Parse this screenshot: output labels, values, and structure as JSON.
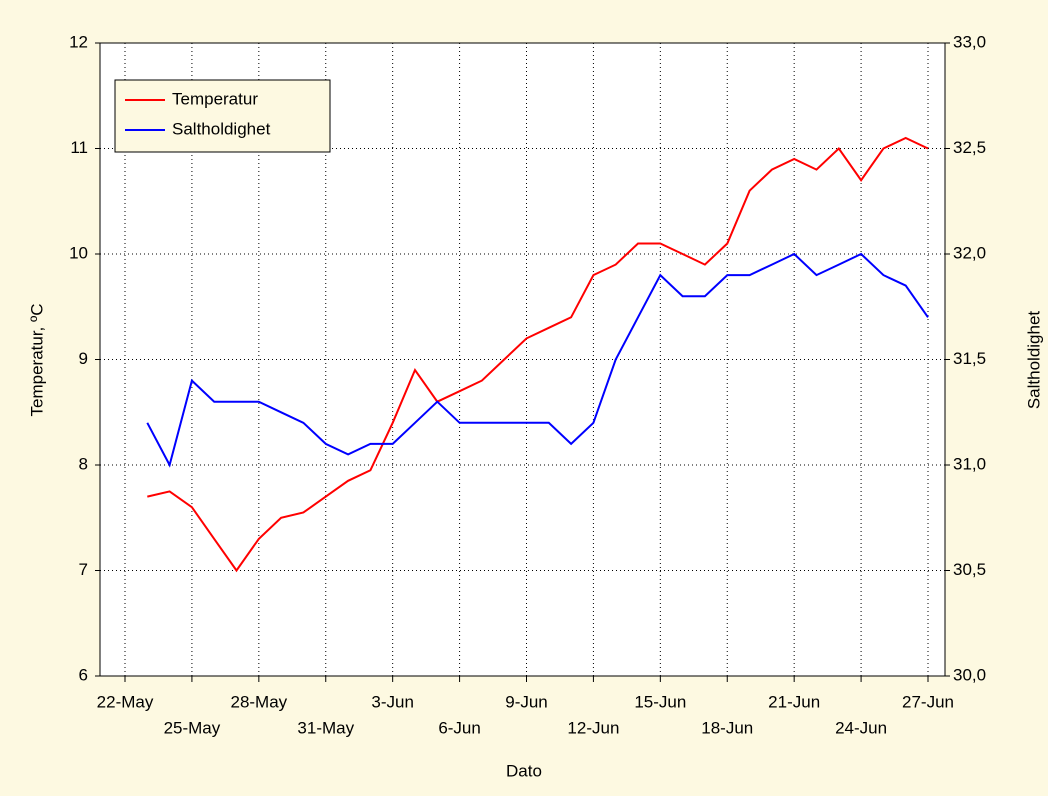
{
  "chart_data": {
    "type": "line",
    "xlabel": "Dato",
    "ylabel": "Temperatur, ºC",
    "y2label": "Saltholdighet",
    "categories": [
      "22-May",
      null,
      null,
      "25-May",
      null,
      null,
      "28-May",
      null,
      null,
      "31-May",
      null,
      null,
      "3-Jun",
      null,
      null,
      "6-Jun",
      null,
      null,
      "9-Jun",
      null,
      null,
      "12-Jun",
      null,
      null,
      "15-Jun",
      null,
      null,
      "18-Jun",
      null,
      null,
      "21-Jun",
      null,
      null,
      "24-Jun",
      null,
      null,
      "27-Jun"
    ],
    "series": [
      {
        "name": "Temperatur",
        "color": "#ff0000",
        "axis": "y",
        "values": [
          null,
          7.7,
          7.75,
          7.6,
          7.3,
          7.0,
          7.3,
          7.5,
          7.55,
          7.7,
          7.85,
          7.95,
          8.4,
          8.9,
          8.6,
          8.7,
          8.8,
          9.0,
          9.2,
          9.3,
          9.4,
          9.8,
          9.9,
          10.1,
          10.1,
          10.0,
          9.9,
          10.1,
          10.6,
          10.8,
          10.9,
          10.8,
          11.0,
          10.7,
          11.0,
          11.1,
          11.0
        ]
      },
      {
        "name": "Saltholdighet",
        "color": "#0000ff",
        "axis": "y2",
        "values": [
          null,
          31.2,
          31.0,
          31.4,
          31.3,
          31.3,
          31.3,
          31.25,
          31.2,
          31.1,
          31.05,
          31.1,
          31.1,
          31.2,
          31.3,
          31.2,
          31.2,
          31.2,
          31.2,
          31.2,
          31.1,
          31.2,
          31.5,
          31.7,
          31.9,
          31.8,
          31.8,
          31.9,
          31.9,
          31.95,
          32.0,
          31.9,
          31.95,
          32.0,
          31.9,
          31.85,
          31.7
        ]
      }
    ],
    "ylim": [
      6,
      12
    ],
    "yticks": [
      6,
      7,
      8,
      9,
      10,
      11,
      12
    ],
    "y2lim": [
      30,
      33
    ],
    "y2ticks": [
      {
        "value": 30,
        "label": "30,0"
      },
      {
        "value": 30.5,
        "label": "30,5"
      },
      {
        "value": 31,
        "label": "31,0"
      },
      {
        "value": 31.5,
        "label": "31,5"
      },
      {
        "value": 32,
        "label": "32,0"
      },
      {
        "value": 32.5,
        "label": "32,5"
      },
      {
        "value": 33,
        "label": "33,0"
      }
    ],
    "grid": true,
    "legend": "upper left"
  }
}
